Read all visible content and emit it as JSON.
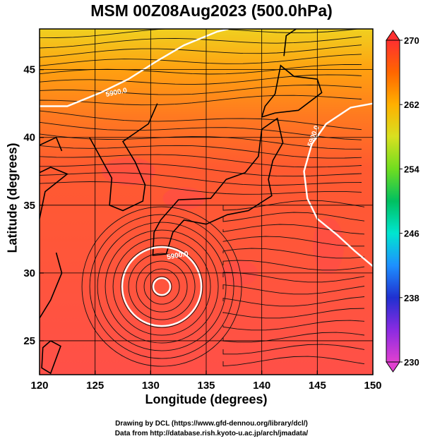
{
  "title": "MSM 00Z08Aug2023 (500.0hPa)",
  "footer": {
    "line1": "Drawing by DCL (https://www.gfd-dennou.org/library/dcl/)",
    "line2": "Data from http://database.rish.kyoto-u.ac.jp/arch/jmadata/"
  },
  "chart_data": {
    "type": "heatmap",
    "xlabel": "Longitude (degrees)",
    "ylabel": "Latitude  (degrees)",
    "xlim": [
      120,
      150
    ],
    "ylim": [
      22.5,
      48
    ],
    "xticks": [
      "120",
      "125",
      "130",
      "135",
      "140",
      "145",
      "150"
    ],
    "yticks": [
      "25",
      "30",
      "35",
      "40",
      "45"
    ],
    "grid": true,
    "colorbar": {
      "ticks": [
        "230",
        "238",
        "246",
        "254",
        "262",
        "270"
      ],
      "min": 230,
      "max": 270,
      "colors": [
        "#e040d0",
        "#8a2be2",
        "#2030d0",
        "#1e90ff",
        "#00e5d0",
        "#00c060",
        "#70dd20",
        "#d8e020",
        "#ffb000",
        "#ff6600",
        "#ff3030"
      ]
    },
    "contour_labels": [
      "5900.0",
      "5900.0",
      "5900.0"
    ],
    "typhoon_center": {
      "lon": 131.0,
      "lat": 29.0
    },
    "temperature_field": [
      {
        "region": "far north (lat > 44)",
        "value": 262
      },
      {
        "region": "north (lat 40-44)",
        "value": 265
      },
      {
        "region": "central and south",
        "value": 268
      }
    ]
  }
}
